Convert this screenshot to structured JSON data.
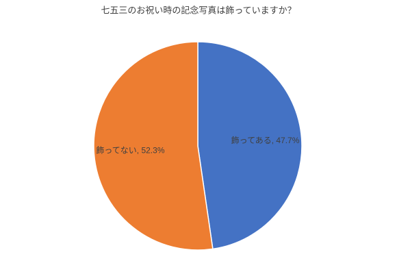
{
  "chart_data": {
    "type": "pie",
    "title": "七五三のお祝い時の記念写真は飾っていますか？",
    "values": [
      47.7,
      52.3
    ],
    "value_labels": [
      "飾ってある, 47.7%",
      "飾ってない, 52.3%"
    ],
    "colors": [
      "#4472c4",
      "#ed7d31"
    ]
  }
}
